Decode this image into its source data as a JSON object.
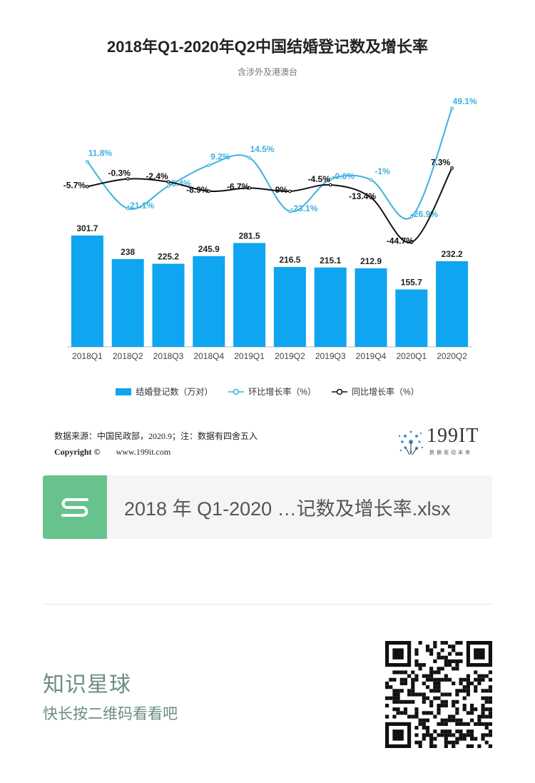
{
  "title": "2018年Q1-2020年Q2中国结婚登记数及增长率",
  "subtitle": "含涉外及港澳台",
  "chart_data": {
    "type": "bar",
    "categories": [
      "2018Q1",
      "2018Q2",
      "2018Q3",
      "2018Q4",
      "2019Q1",
      "2019Q2",
      "2019Q3",
      "2019Q4",
      "2020Q1",
      "2020Q2"
    ],
    "series": [
      {
        "name": "结婚登记数（万对）",
        "type": "bar",
        "color": "#0fa5f0",
        "values": [
          301.7,
          238,
          225.2,
          245.9,
          281.5,
          216.5,
          215.1,
          212.9,
          155.7,
          232.2
        ],
        "labels": [
          "301.7",
          "238",
          "225.2",
          "245.9",
          "281.5",
          "216.5",
          "215.1",
          "212.9",
          "155.7",
          "232.2"
        ]
      },
      {
        "name": "环比增长率（%）",
        "type": "line",
        "color": "#3db1de",
        "values": [
          11.8,
          -21.1,
          -5.4,
          9.2,
          14.5,
          -23.1,
          -0.6,
          -1,
          -26.9,
          49.1
        ],
        "labels": [
          "11.8%",
          "-21.1%",
          "-5.4%",
          "9.2%",
          "14.5%",
          "-23.1%",
          "-0.6%",
          "-1%",
          "-26.9%",
          "49.1%"
        ]
      },
      {
        "name": "同比增长率（%）",
        "type": "line",
        "color": "#111111",
        "values": [
          -5.7,
          -0.3,
          -2.4,
          -8.9,
          -6.7,
          -9,
          -4.5,
          -13.4,
          -44.7,
          7.3
        ],
        "labels": [
          "-5.7%",
          "-0.3%",
          "-2.4%",
          "-8.9%",
          "-6.7%",
          "-9%",
          "-4.5%",
          "-13.4%",
          "-44.7%",
          "7.3%"
        ]
      }
    ],
    "legend_position": "bottom",
    "grid": false
  },
  "source": {
    "text": "数据来源：中国民政部，2020.9；注：数据有四舍五入",
    "copyright": "Copyright ©",
    "url": "www.199it.com"
  },
  "logo": {
    "text": "199IT",
    "tagline": "数据驱动未来"
  },
  "file": {
    "icon": "s-file-icon",
    "name": "2018 年 Q1-2020 …记数及增长率.xlsx"
  },
  "planet": {
    "title": "知识星球",
    "subtitle": "快长按二维码看看吧",
    "qr_icon": "qr-code-icon"
  }
}
